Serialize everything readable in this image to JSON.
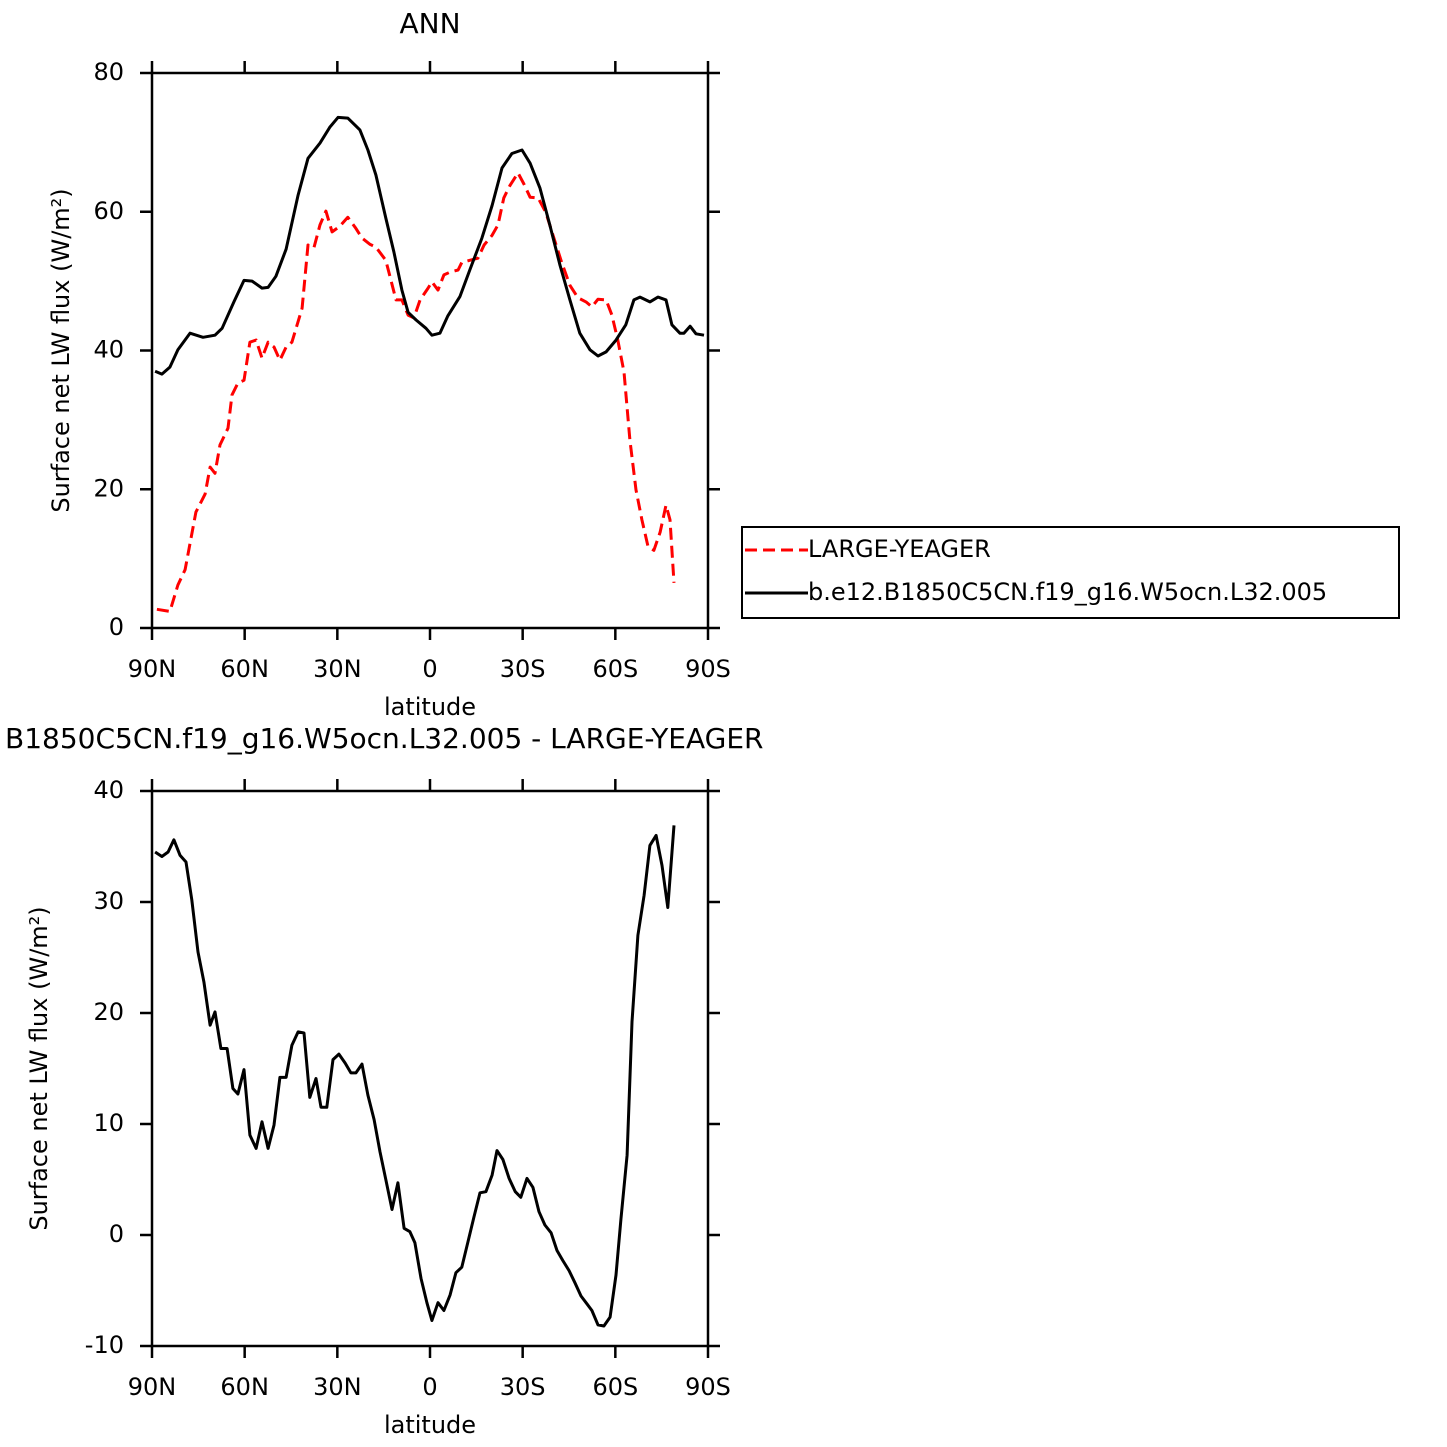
{
  "chart_data": [
    {
      "type": "line",
      "title": "ANN",
      "xlabel": "latitude",
      "ylabel": "Surface net LW flux (W/m²)",
      "xlim": [
        90,
        -90
      ],
      "xticks": [
        {
          "value": 90,
          "label": "90N"
        },
        {
          "value": 60,
          "label": "60N"
        },
        {
          "value": 30,
          "label": "30N"
        },
        0,
        {
          "value": -30,
          "label": "30S"
        },
        {
          "value": -60,
          "label": "60S"
        },
        {
          "value": -90,
          "label": "90S"
        }
      ],
      "ylim": [
        0,
        80
      ],
      "yticks": [
        0,
        20,
        40,
        60,
        80
      ],
      "series": [
        {
          "name": "LARGE-YEAGER",
          "color": "#ff0000",
          "dashed": true,
          "x": [
            88.4,
            84.2,
            81.6,
            79.3,
            75.8,
            72.8,
            71.2,
            69.6,
            68.0,
            65.4,
            64.1,
            62.2,
            60.2,
            58.3,
            56.3,
            54.4,
            52.4,
            50.5,
            48.6,
            46.6,
            44.7,
            41.4,
            39.5,
            37.6,
            35.6,
            33.7,
            31.7,
            29.2,
            26.6,
            24.0,
            22.0,
            19.4,
            17.5,
            14.3,
            11.0,
            9.1,
            7.1,
            5.2,
            3.2,
            0.6,
            -0.6,
            -2.6,
            -4.5,
            -6.5,
            -9.1,
            -10.3,
            -12.9,
            -15.5,
            -17.5,
            -20.1,
            -22.0,
            -23.9,
            -25.9,
            -28.5,
            -30.4,
            -32.4,
            -35.0,
            -37.5,
            -40.1,
            -42.7,
            -45.3,
            -47.9,
            -50.5,
            -52.4,
            -54.4,
            -57.0,
            -58.9,
            -60.8,
            -62.8,
            -64.7,
            -66.7,
            -68.6,
            -70.6,
            -72.5,
            -74.5,
            -76.4,
            -77.7,
            -79.0
          ],
          "values": [
            2.7,
            2.4,
            6.2,
            8.4,
            16.7,
            19.3,
            23.2,
            22.3,
            26.4,
            28.8,
            33.6,
            35.3,
            35.7,
            41.2,
            41.5,
            38.9,
            41.2,
            40.5,
            38.6,
            40.5,
            41.2,
            46.1,
            55.2,
            54.8,
            58.1,
            60.1,
            57.1,
            57.9,
            59.2,
            57.6,
            56.2,
            55.3,
            54.9,
            53.0,
            47.3,
            47.3,
            45.1,
            44.7,
            47.3,
            49.0,
            49.9,
            48.7,
            50.9,
            51.3,
            51.6,
            52.7,
            53.0,
            53.3,
            55.2,
            56.6,
            58.1,
            62.0,
            63.8,
            65.6,
            64.0,
            62.1,
            62.0,
            59.9,
            56.2,
            52.6,
            49.4,
            47.6,
            47.0,
            46.3,
            47.4,
            47.3,
            45.1,
            41.5,
            36.9,
            27.1,
            19.9,
            15.6,
            11.7,
            11.2,
            13.8,
            17.7,
            15.6,
            6.5
          ]
        },
        {
          "name": "b.e12.B1850C5CN.f19_g16.W5ocn.L32.005",
          "color": "#000000",
          "dashed": false,
          "x": [
            89.0,
            86.8,
            84.2,
            81.6,
            77.7,
            73.5,
            69.6,
            67.3,
            63.5,
            60.2,
            57.6,
            54.4,
            52.4,
            49.9,
            46.6,
            42.7,
            39.5,
            35.6,
            32.4,
            29.8,
            26.6,
            22.7,
            20.1,
            17.5,
            14.3,
            11.7,
            9.1,
            7.1,
            4.5,
            1.3,
            -0.6,
            -3.2,
            -5.8,
            -9.7,
            -12.9,
            -16.8,
            -20.1,
            -23.3,
            -26.5,
            -29.8,
            -32.4,
            -35.6,
            -38.8,
            -42.1,
            -45.3,
            -48.5,
            -51.8,
            -54.4,
            -57.0,
            -60.2,
            -63.4,
            -66.0,
            -68.0,
            -71.2,
            -73.8,
            -76.4,
            -78.3,
            -80.9,
            -82.2,
            -84.2,
            -86.1,
            -88.7
          ],
          "values": [
            37.0,
            36.6,
            37.6,
            40.1,
            42.5,
            41.9,
            42.2,
            43.2,
            47.0,
            50.1,
            50.0,
            49.0,
            49.1,
            50.7,
            54.6,
            62.4,
            67.7,
            69.9,
            72.2,
            73.6,
            73.5,
            71.8,
            68.9,
            65.3,
            59.1,
            54.2,
            48.7,
            45.5,
            44.4,
            43.2,
            42.2,
            42.5,
            45.0,
            47.8,
            51.6,
            56.2,
            60.9,
            66.3,
            68.4,
            68.9,
            67.0,
            63.4,
            58.1,
            52.3,
            47.3,
            42.5,
            40.1,
            39.2,
            39.8,
            41.5,
            43.7,
            47.3,
            47.7,
            47.0,
            47.7,
            47.3,
            43.7,
            42.5,
            42.5,
            43.5,
            42.4,
            42.2
          ]
        }
      ]
    },
    {
      "type": "line",
      "title": "B1850C5CN.f19_g16.W5ocn.L32.005 - LARGE-YEAGER",
      "xlabel": "latitude",
      "ylabel": "Surface net LW flux (W/m²)",
      "xlim": [
        90,
        -90
      ],
      "xticks": [
        {
          "value": 90,
          "label": "90N"
        },
        {
          "value": 60,
          "label": "60N"
        },
        {
          "value": 30,
          "label": "30N"
        },
        0,
        {
          "value": -30,
          "label": "30S"
        },
        {
          "value": -60,
          "label": "60S"
        },
        {
          "value": -90,
          "label": "90S"
        }
      ],
      "ylim": [
        -10,
        40
      ],
      "yticks": [
        -10,
        0,
        10,
        20,
        30,
        40
      ],
      "color": "#000000",
      "x": [
        89.0,
        86.8,
        84.8,
        82.9,
        80.9,
        79.0,
        77.1,
        75.1,
        73.2,
        71.2,
        69.6,
        67.7,
        65.7,
        63.8,
        62.2,
        60.2,
        58.3,
        56.3,
        54.4,
        52.4,
        50.5,
        48.6,
        46.6,
        44.7,
        42.7,
        40.8,
        38.9,
        36.9,
        35.3,
        33.4,
        31.4,
        29.5,
        27.5,
        25.6,
        24.0,
        22.0,
        20.1,
        18.1,
        16.2,
        14.3,
        12.3,
        10.4,
        8.4,
        6.5,
        4.9,
        2.9,
        1.0,
        -0.6,
        -2.6,
        -4.5,
        -6.5,
        -8.4,
        -10.3,
        -12.3,
        -14.2,
        -16.2,
        -18.1,
        -20.1,
        -21.7,
        -23.6,
        -25.6,
        -27.6,
        -29.4,
        -31.4,
        -33.3,
        -35.3,
        -37.2,
        -39.2,
        -41.1,
        -43.0,
        -45.0,
        -46.9,
        -48.9,
        -50.8,
        -52.4,
        -54.4,
        -56.3,
        -58.3,
        -60.2,
        -61.8,
        -63.8,
        -65.4,
        -67.3,
        -69.3,
        -71.2,
        -73.2,
        -75.1,
        -77.0,
        -79.0
      ],
      "values": [
        34.5,
        34.1,
        34.5,
        35.6,
        34.2,
        33.6,
        30.2,
        25.5,
        22.8,
        18.9,
        20.1,
        16.8,
        16.8,
        13.2,
        12.7,
        14.9,
        9.0,
        7.8,
        10.2,
        7.8,
        9.9,
        14.2,
        14.2,
        17.1,
        18.3,
        18.2,
        12.4,
        14.1,
        11.5,
        11.5,
        15.8,
        16.3,
        15.5,
        14.6,
        14.6,
        15.4,
        12.6,
        10.4,
        7.5,
        5.0,
        2.3,
        4.7,
        0.6,
        0.3,
        -0.7,
        -3.9,
        -6.1,
        -7.7,
        -6.1,
        -6.8,
        -5.4,
        -3.4,
        -2.9,
        -0.6,
        1.6,
        3.8,
        3.9,
        5.4,
        7.6,
        6.8,
        5.1,
        3.9,
        3.4,
        5.1,
        4.3,
        2.1,
        0.9,
        0.2,
        -1.4,
        -2.3,
        -3.2,
        -4.3,
        -5.5,
        -6.2,
        -6.8,
        -8.1,
        -8.2,
        -7.4,
        -3.6,
        1.4,
        7.2,
        19.2,
        27.0,
        30.6,
        35.1,
        36.0,
        33.3,
        29.5,
        36.9
      ]
    }
  ]
}
